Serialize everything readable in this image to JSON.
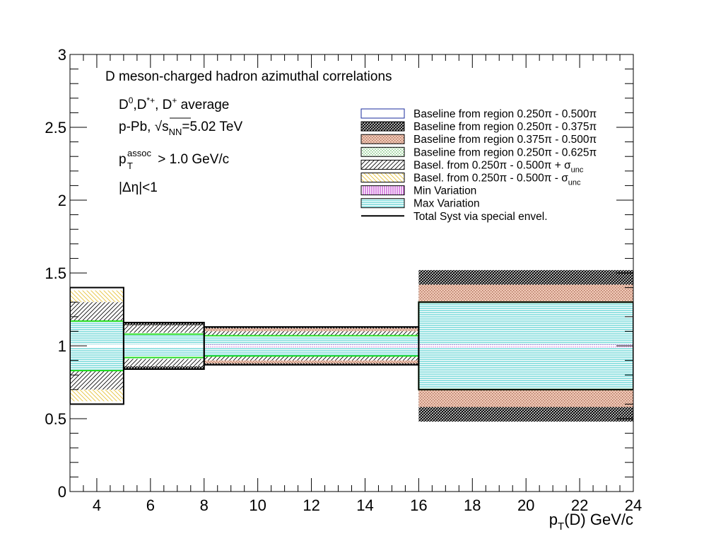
{
  "chart_data": {
    "type": "area",
    "title": "",
    "xlabel": {
      "pre": "p",
      "sub": "T",
      "post": "(D) GeV/c"
    },
    "ylabel": "",
    "xlim": [
      3,
      24
    ],
    "ylim": [
      0,
      3
    ],
    "x_ticks": [
      4,
      6,
      8,
      10,
      12,
      14,
      16,
      18,
      20,
      22,
      24
    ],
    "y_ticks": [
      "0",
      "0.5",
      "1",
      "1.5",
      "2",
      "2.5",
      "3"
    ],
    "y_tick_values": [
      0,
      0.5,
      1,
      1.5,
      2,
      2.5,
      3
    ],
    "x_edges": [
      3,
      5,
      8,
      16,
      24
    ],
    "grid": false,
    "legend_position": "top-right",
    "annotations": {
      "title": "D meson-charged hadron azimuthal correlations",
      "species": {
        "d0": "D",
        "d0_sup": "0",
        "sep1": ",D",
        "dstar_sup": "*+",
        "sep2": ", D",
        "dplus_sup": "+",
        "post": " average"
      },
      "system": {
        "pre": "p-Pb, ",
        "sqrt": "√",
        "s": "s",
        "s_sub": "NN",
        "post": "=5.02 TeV"
      },
      "assoc": {
        "p": "p",
        "sub": "T",
        "sup": "assoc",
        "post": " > 1.0 GeV/c"
      },
      "eta": "|Δη|<1"
    },
    "series": [
      {
        "name": "Baseline from region 0.250π - 0.500π",
        "fill": "#ffffff",
        "stroke": "#1a2b9c",
        "lower": [
          0.99,
          0.99,
          0.995,
          0.995
        ],
        "upper": [
          1.01,
          1.01,
          1.005,
          1.005
        ]
      },
      {
        "name": "Baseline from region 0.250π - 0.375π",
        "fill": "pattern-dense",
        "stroke": "#000000",
        "lower": [
          0.75,
          0.84,
          0.87,
          0.48
        ],
        "upper": [
          1.25,
          1.16,
          1.13,
          1.52
        ]
      },
      {
        "name": "Baseline from region 0.375π - 0.500π",
        "fill": "pattern-salmon",
        "stroke": "#000000",
        "lower": [
          0.8,
          0.86,
          0.88,
          0.58
        ],
        "upper": [
          1.2,
          1.14,
          1.12,
          1.42
        ]
      },
      {
        "name": "Baseline from region 0.250π - 0.625π",
        "fill": "pattern-green",
        "stroke": "#000000",
        "lower": [
          0.85,
          0.92,
          0.93,
          0.8
        ],
        "upper": [
          1.15,
          1.08,
          1.07,
          1.2
        ]
      },
      {
        "name": "Basel. from 0.250π - 0.500π + σunc",
        "name_parts": {
          "main": "Basel. from 0.250π - 0.500π + σ",
          "sub": "unc"
        },
        "fill": "pattern-diag",
        "stroke": "#000000",
        "lower": [
          0.7,
          0.86,
          0.9,
          0.7
        ],
        "upper": [
          1.3,
          1.14,
          1.1,
          1.3
        ]
      },
      {
        "name": "Basel. from 0.250π - 0.500π - σunc",
        "name_parts": {
          "main": "Basel. from 0.250π - 0.500π - σ",
          "sub": "unc"
        },
        "fill": "pattern-yellow",
        "stroke": "#000000",
        "lower": [
          0.62,
          0.86,
          0.9,
          0.7
        ],
        "upper": [
          1.38,
          1.14,
          1.1,
          1.3
        ]
      },
      {
        "name": "Min Variation",
        "fill": "pattern-magenta",
        "stroke": "#000000",
        "lower": [
          0.99,
          0.99,
          0.99,
          0.99
        ],
        "upper": [
          1.01,
          1.01,
          1.01,
          1.01
        ]
      },
      {
        "name": "Max Variation",
        "fill": "pattern-cyan",
        "stroke": "#000000",
        "lower": [
          0.83,
          0.91,
          0.93,
          0.7
        ],
        "upper": [
          1.17,
          1.09,
          1.07,
          1.3
        ]
      },
      {
        "name": "Total Syst via special envel.",
        "fill": "none",
        "stroke": "#000000",
        "lower": [
          0.6,
          0.84,
          0.87,
          0.7
        ],
        "upper": [
          1.4,
          1.16,
          1.13,
          1.3
        ]
      }
    ],
    "green_envelope": {
      "lower": [
        0.83,
        0.92,
        0.93,
        0.7
      ],
      "upper": [
        1.17,
        1.08,
        1.07,
        1.3
      ]
    }
  }
}
